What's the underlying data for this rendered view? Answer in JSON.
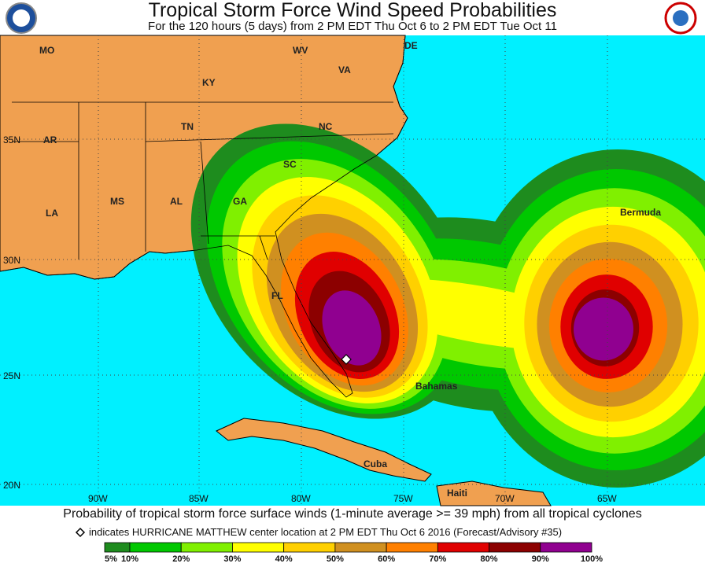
{
  "header": {
    "title": "Tropical Storm Force Wind Speed Probabilities",
    "subtitle": "For the 120 hours (5 days) from 2 PM EDT Thu Oct 6 to 2 PM EDT Tue Oct 11"
  },
  "map": {
    "places": [
      "MO",
      "WV",
      "DE",
      "VA",
      "KY",
      "TN",
      "NC",
      "AR",
      "SC",
      "MS",
      "AL",
      "GA",
      "LA",
      "FL",
      "Bermuda",
      "Bahamas",
      "Cuba",
      "Haiti"
    ],
    "lat_labels": [
      "35N",
      "30N",
      "25N",
      "20N"
    ],
    "lon_labels": [
      "90W",
      "85W",
      "80W",
      "75W",
      "70W",
      "65W"
    ]
  },
  "footer": {
    "caption": "Probability of tropical storm force surface winds (1-minute average >= 39 mph) from all tropical cyclones",
    "note": "indicates HURRICANE MATTHEW center location at 2 PM EDT Thu Oct 6 2016 (Forecast/Advisory #35)"
  },
  "legend": {
    "labels": [
      "5%",
      "10%",
      "20%",
      "30%",
      "40%",
      "50%",
      "60%",
      "70%",
      "80%",
      "90%",
      "100%"
    ],
    "colors": [
      "#1e8c1e",
      "#00c800",
      "#80f000",
      "#ffff00",
      "#ffd000",
      "#d09020",
      "#ff8000",
      "#e00000",
      "#8c0000",
      "#900090"
    ]
  }
}
